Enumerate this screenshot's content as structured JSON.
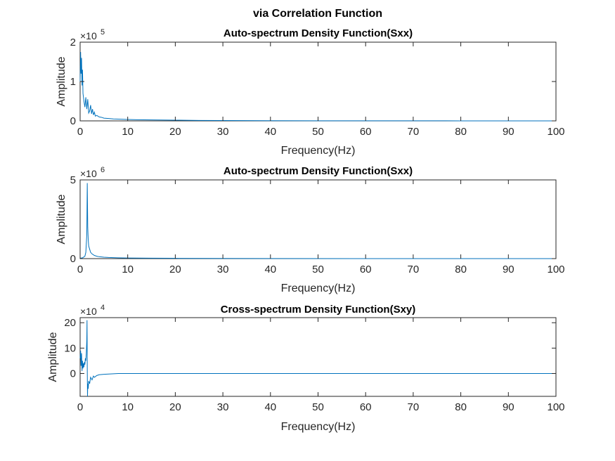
{
  "figure": {
    "title": "via Correlation Function",
    "line_color": "#0072BD"
  },
  "chart_data": [
    {
      "type": "line",
      "title": "Auto-spectrum Density Function(Sxx)",
      "xlabel": "Frequency(Hz)",
      "ylabel": "Amplitude",
      "xlim": [
        0,
        100
      ],
      "ylim": [
        0,
        200000
      ],
      "xticks": [
        0,
        10,
        20,
        30,
        40,
        50,
        60,
        70,
        80,
        90,
        100
      ],
      "yticks": [
        0,
        1,
        2
      ],
      "y_multiplier": "×10",
      "y_exponent": "5",
      "grid": false,
      "series": [
        {
          "x": [
            0.0,
            0.1,
            0.2,
            0.3,
            0.4,
            0.5,
            0.6,
            0.8,
            1.0,
            1.2,
            1.4,
            1.6,
            1.8,
            2.0,
            2.2,
            2.4,
            2.6,
            2.8,
            3.0,
            3.2,
            3.5,
            4.0,
            4.5,
            5.0,
            6.0,
            7.0,
            8.0,
            10.0,
            12.0,
            15.0,
            20.0,
            25.0,
            30.0,
            40.0,
            50.0,
            60.0,
            80.0,
            100.0
          ],
          "y": [
            100000,
            175000,
            120000,
            160000,
            90000,
            130000,
            70000,
            50000,
            35000,
            60000,
            30000,
            55000,
            20000,
            25000,
            40000,
            18000,
            30000,
            15000,
            22000,
            12000,
            14000,
            10000,
            9000,
            7000,
            6000,
            5000,
            4500,
            3500,
            3000,
            2500,
            1800,
            1200,
            900,
            500,
            300,
            200,
            100,
            100
          ]
        }
      ]
    },
    {
      "type": "line",
      "title": "Auto-spectrum Density Function(Sxx)",
      "xlabel": "Frequency(Hz)",
      "ylabel": "Amplitude",
      "xlim": [
        0,
        100
      ],
      "ylim": [
        0,
        5000000
      ],
      "xticks": [
        0,
        10,
        20,
        30,
        40,
        50,
        60,
        70,
        80,
        90,
        100
      ],
      "yticks": [
        0,
        5
      ],
      "y_multiplier": "×10",
      "y_exponent": "6",
      "grid": false,
      "series": [
        {
          "x": [
            0.0,
            0.5,
            1.0,
            1.2,
            1.4,
            1.5,
            1.6,
            1.7,
            1.8,
            2.0,
            2.2,
            2.5,
            3.0,
            3.5,
            4.0,
            5.0,
            6.0,
            8.0,
            10.0,
            15.0,
            20.0,
            30.0,
            40.0,
            60.0,
            100.0
          ],
          "y": [
            20000,
            50000,
            150000,
            400000,
            1500000,
            4800000,
            2000000,
            1200000,
            800000,
            600000,
            400000,
            300000,
            200000,
            150000,
            120000,
            90000,
            70000,
            50000,
            40000,
            30000,
            20000,
            10000,
            5000,
            2000,
            1000
          ]
        }
      ]
    },
    {
      "type": "line",
      "title": "Cross-spectrum Density Function(Sxy)",
      "xlabel": "Frequency(Hz)",
      "ylabel": "Amplitude",
      "xlim": [
        0,
        100
      ],
      "ylim": [
        -90000,
        220000
      ],
      "xticks": [
        0,
        10,
        20,
        30,
        40,
        50,
        60,
        70,
        80,
        90,
        100
      ],
      "yticks": [
        0,
        10,
        20
      ],
      "y_multiplier": "×10",
      "y_exponent": "4",
      "grid": false,
      "series": [
        {
          "x": [
            0.0,
            0.1,
            0.2,
            0.3,
            0.4,
            0.5,
            0.6,
            0.7,
            0.8,
            0.9,
            1.0,
            1.1,
            1.2,
            1.3,
            1.4,
            1.45,
            1.5,
            1.55,
            1.6,
            1.7,
            1.8,
            2.0,
            2.2,
            2.5,
            2.8,
            3.0,
            3.5,
            4.0,
            5.0,
            6.0,
            8.0,
            10.0,
            15.0,
            20.0,
            100.0
          ],
          "y": [
            60000,
            90000,
            30000,
            80000,
            10000,
            50000,
            20000,
            40000,
            25000,
            45000,
            35000,
            60000,
            50000,
            80000,
            130000,
            210000,
            20000,
            -90000,
            -40000,
            -60000,
            -30000,
            -40000,
            -15000,
            -25000,
            -10000,
            -15000,
            -8000,
            -5000,
            -3000,
            -2000,
            0,
            0,
            0,
            0,
            0
          ]
        }
      ]
    }
  ]
}
